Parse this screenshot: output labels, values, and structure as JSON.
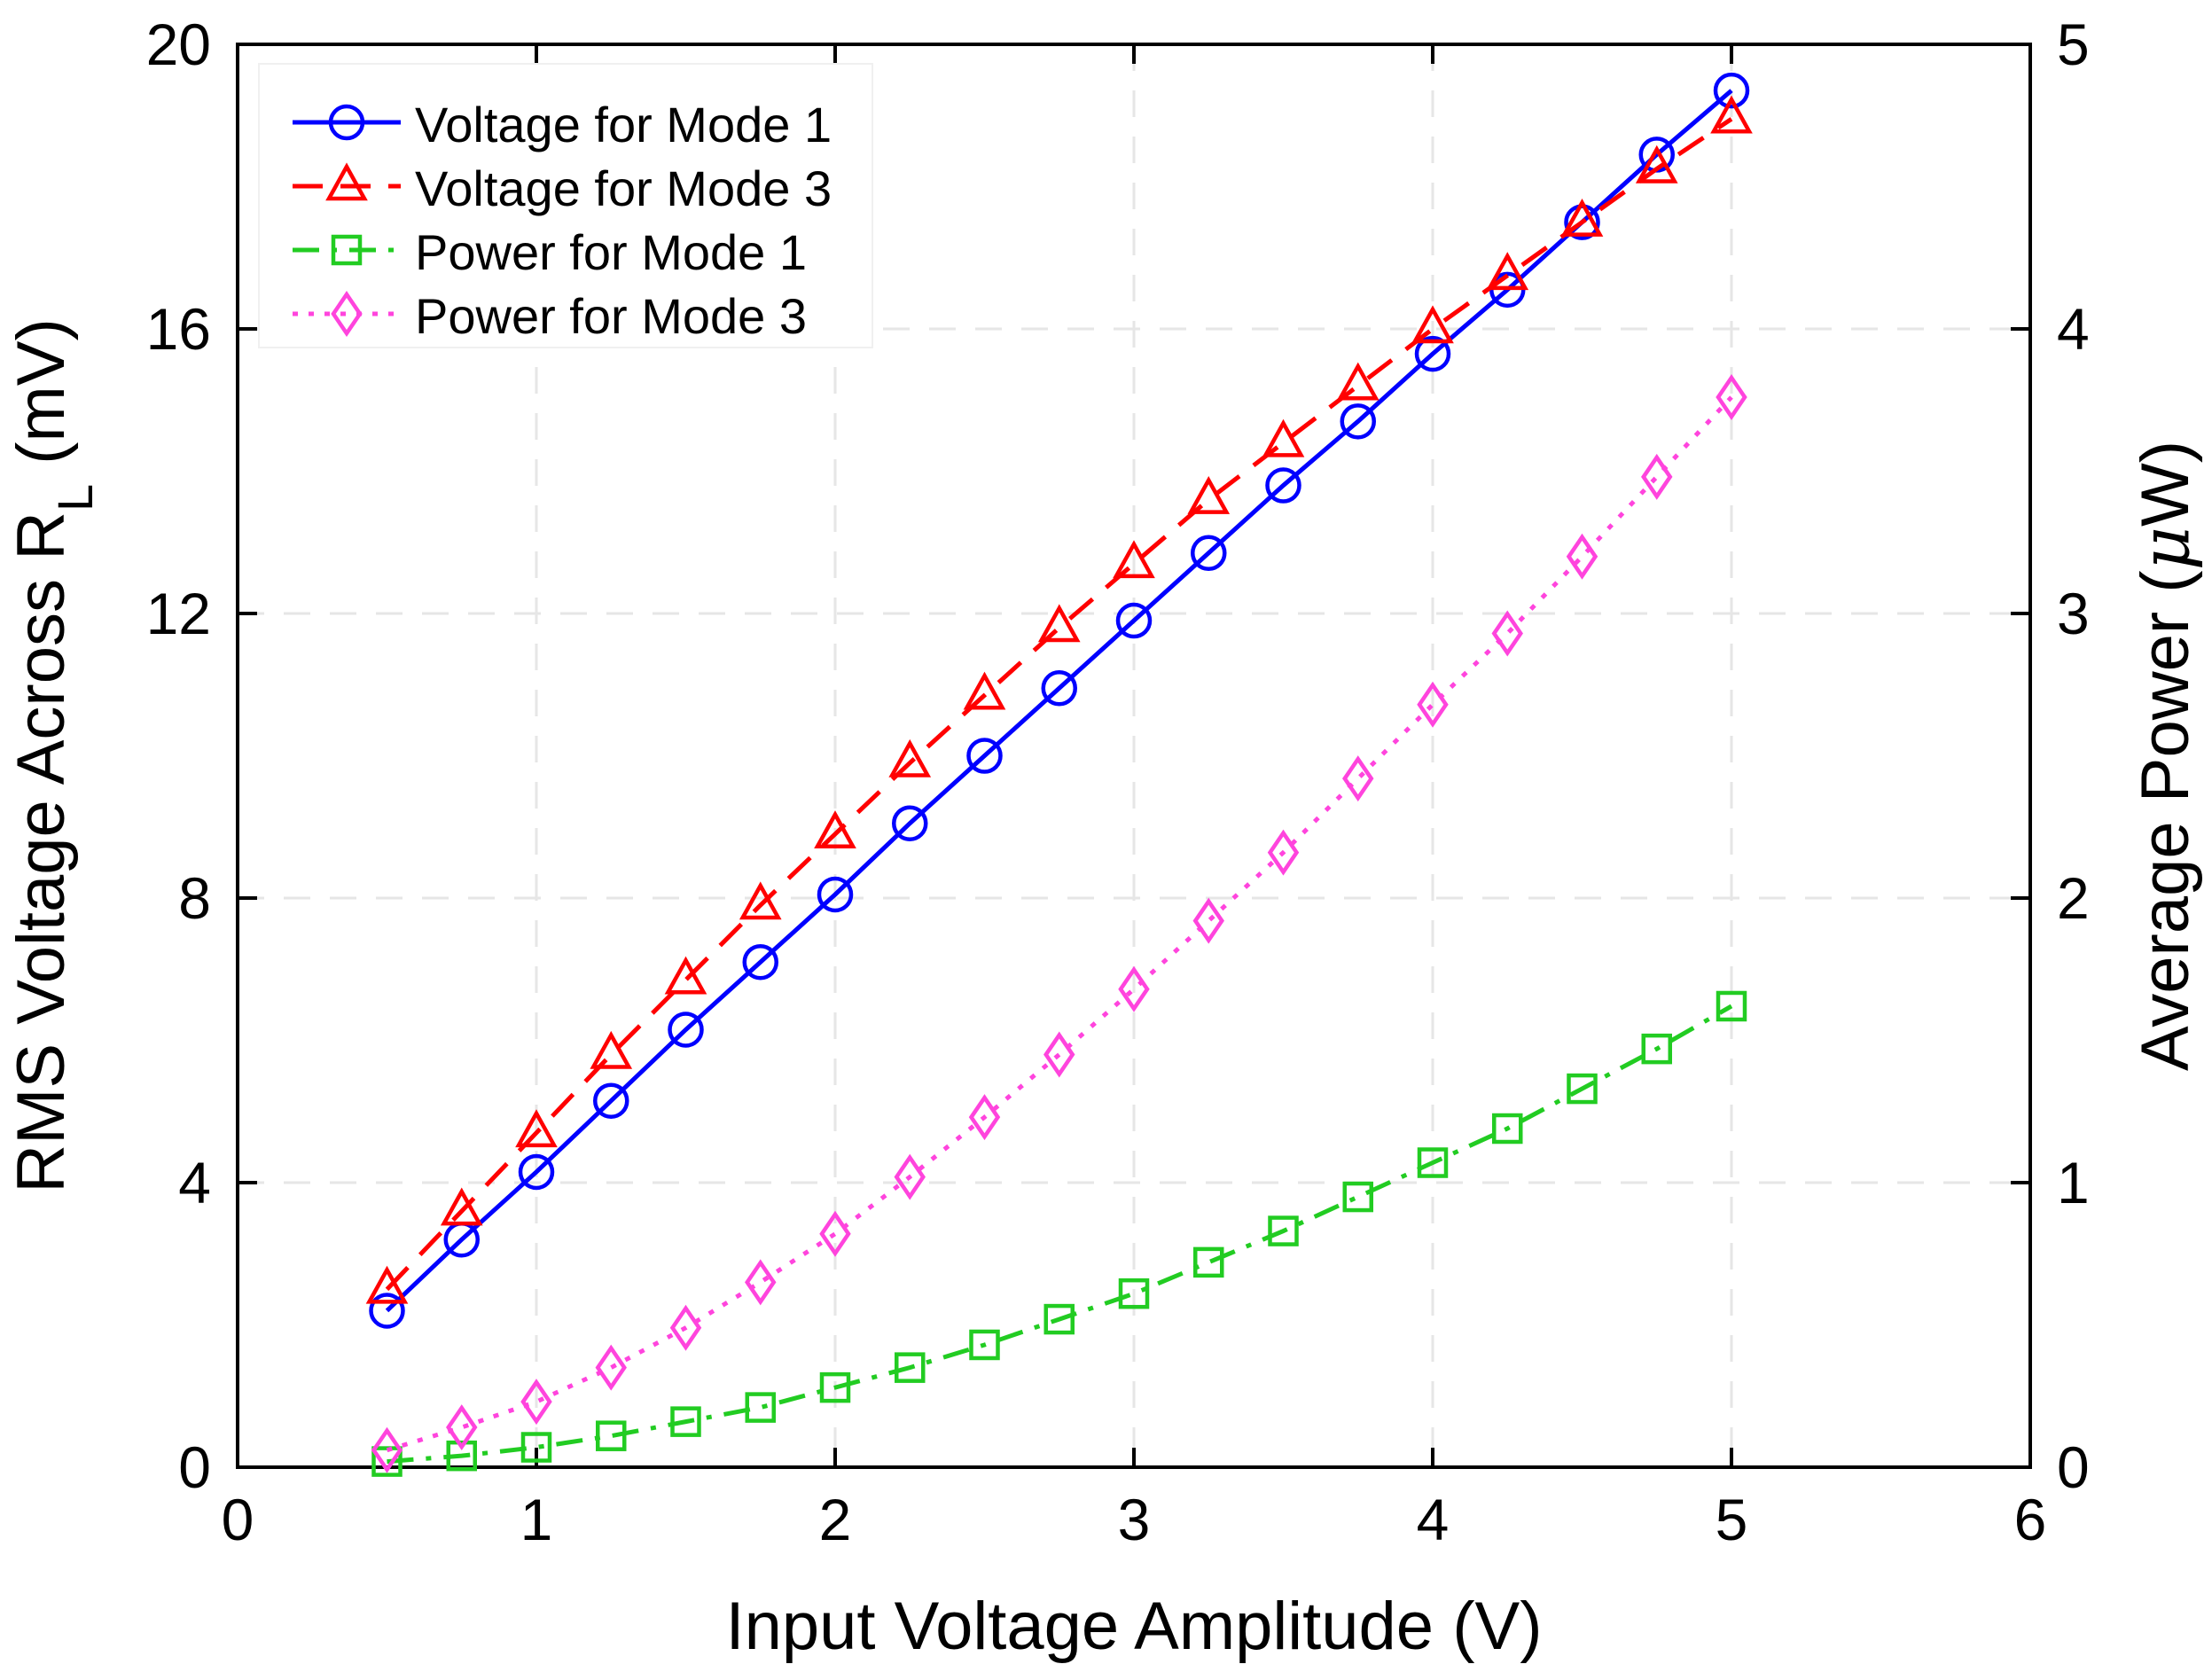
{
  "chart_data": {
    "type": "line",
    "xlabel": "Input Voltage Amplitude (V)",
    "ylabel_left": "RMS Voltage Across R",
    "ylabel_left_sub": "L",
    "ylabel_left_unit": "(mV)",
    "ylabel_right_prefix": "Average Power (",
    "ylabel_right_mu": "μ",
    "ylabel_right_suffix": "W)",
    "xlim": [
      0,
      6
    ],
    "ylim_left": [
      0,
      20
    ],
    "ylim_right": [
      0,
      5
    ],
    "xticks": [
      0,
      1,
      2,
      3,
      4,
      5,
      6
    ],
    "yticks_left": [
      0,
      4,
      8,
      12,
      16,
      20
    ],
    "yticks_right": [
      0,
      1,
      2,
      3,
      4,
      5
    ],
    "grid": true,
    "legend_position": "top-left",
    "x": [
      0.5,
      0.75,
      1.0,
      1.25,
      1.5,
      1.75,
      2.0,
      2.25,
      2.5,
      2.75,
      3.0,
      3.25,
      3.5,
      3.75,
      4.0,
      4.25,
      4.5,
      4.75,
      5.0
    ],
    "series": [
      {
        "name": "Voltage for Mode 1",
        "axis": "left",
        "color": "#0000ff",
        "dash": "solid",
        "marker": "circle",
        "values": [
          2.2,
          3.2,
          4.15,
          5.15,
          6.15,
          7.1,
          8.05,
          9.05,
          10.0,
          10.95,
          11.9,
          12.85,
          13.8,
          14.7,
          15.65,
          16.55,
          17.5,
          18.45,
          19.35
        ]
      },
      {
        "name": "Voltage for Mode 3",
        "axis": "left",
        "color": "#ff0000",
        "dash": "dashed",
        "marker": "triangle",
        "values": [
          2.5,
          3.6,
          4.7,
          5.8,
          6.85,
          7.9,
          8.9,
          9.9,
          10.85,
          11.8,
          12.7,
          13.6,
          14.4,
          15.2,
          16.0,
          16.75,
          17.5,
          18.25,
          18.95
        ]
      },
      {
        "name": "Power for Mode 1",
        "axis": "right",
        "color": "#22cc22",
        "dash": "dashdot",
        "marker": "square",
        "values": [
          0.02,
          0.04,
          0.07,
          0.11,
          0.16,
          0.21,
          0.28,
          0.35,
          0.43,
          0.52,
          0.61,
          0.72,
          0.83,
          0.95,
          1.07,
          1.19,
          1.33,
          1.47,
          1.62
        ]
      },
      {
        "name": "Power for Mode 3",
        "axis": "right",
        "color": "#ff44dd",
        "dash": "dotted",
        "marker": "diamond",
        "values": [
          0.06,
          0.14,
          0.23,
          0.35,
          0.49,
          0.65,
          0.82,
          1.02,
          1.23,
          1.45,
          1.68,
          1.92,
          2.16,
          2.42,
          2.68,
          2.93,
          3.2,
          3.48,
          3.76
        ]
      }
    ]
  }
}
